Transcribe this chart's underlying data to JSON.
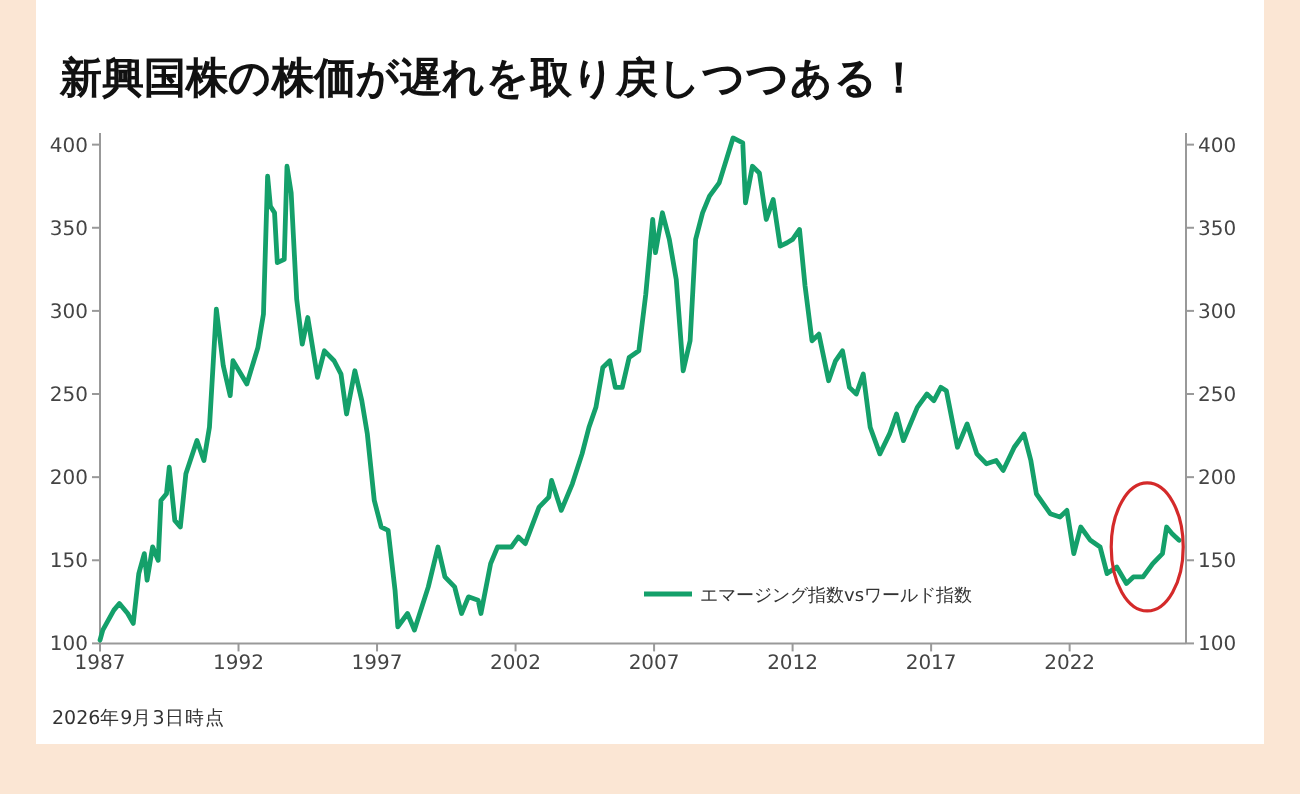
{
  "chart_data": {
    "type": "line",
    "title": "新興国株の株価が遅れを取り戻しつつある！",
    "annotations": [
      "2026年9月3日時点"
    ],
    "xlim": [
      1987,
      2026.2
    ],
    "xticks": [
      1987,
      1992,
      1997,
      2002,
      2007,
      2012,
      2017,
      2022
    ],
    "ylim": [
      100,
      407
    ],
    "yticks": [
      100,
      150,
      200,
      250,
      300,
      350,
      400
    ],
    "y2lim": [
      100,
      407
    ],
    "y2ticks": [
      100,
      150,
      200,
      250,
      300,
      350,
      400
    ],
    "legend": "bottom right",
    "grid": false,
    "line_style": "solid",
    "series": [
      {
        "name": "エマージング指数vsワールド指数",
        "color": "#14a06a",
        "x": [
          1987.0,
          1987.1,
          1987.5,
          1987.7,
          1988.0,
          1988.2,
          1988.4,
          1988.6,
          1988.7,
          1988.9,
          1989.1,
          1989.2,
          1989.4,
          1989.5,
          1989.7,
          1989.9,
          1990.1,
          1990.5,
          1990.75,
          1990.95,
          1991.2,
          1991.45,
          1991.7,
          1991.8,
          1992.3,
          1992.7,
          1992.9,
          1993.05,
          1993.15,
          1993.3,
          1993.4,
          1993.65,
          1993.75,
          1993.9,
          1994.1,
          1994.3,
          1994.5,
          1994.85,
          1995.1,
          1995.45,
          1995.7,
          1995.9,
          1996.2,
          1996.45,
          1996.65,
          1996.9,
          1997.15,
          1997.4,
          1997.65,
          1997.75,
          1998.1,
          1998.35,
          1998.85,
          1999.2,
          1999.45,
          1999.8,
          2000.05,
          2000.3,
          2000.65,
          2000.75,
          2001.1,
          2001.35,
          2001.85,
          2002.1,
          2002.35,
          2002.85,
          2003.2,
          2003.3,
          2003.65,
          2004.05,
          2004.4,
          2004.65,
          2004.9,
          2005.15,
          2005.4,
          2005.6,
          2005.85,
          2006.1,
          2006.45,
          2006.7,
          2006.95,
          2007.05,
          2007.3,
          2007.55,
          2007.8,
          2008.05,
          2008.3,
          2008.5,
          2008.75,
          2009.0,
          2009.35,
          2009.85,
          2010.2,
          2010.3,
          2010.55,
          2010.8,
          2011.05,
          2011.3,
          2011.55,
          2011.8,
          2012.0,
          2012.25,
          2012.45,
          2012.7,
          2012.95,
          2013.3,
          2013.55,
          2013.8,
          2014.05,
          2014.3,
          2014.55,
          2014.8,
          2015.15,
          2015.5,
          2015.75,
          2016.0,
          2016.5,
          2016.85,
          2017.1,
          2017.35,
          2017.55,
          2017.95,
          2018.3,
          2018.65,
          2019.0,
          2019.35,
          2019.6,
          2020.0,
          2020.35,
          2020.6,
          2020.8,
          2021.3,
          2021.65,
          2021.9,
          2022.15,
          2022.4,
          2022.75,
          2023.1,
          2023.35,
          2023.7,
          2024.05,
          2024.3,
          2024.65,
          2025.0,
          2025.35,
          2025.5,
          2025.7,
          2025.95
        ],
        "values": [
          102,
          108,
          120,
          124,
          118,
          112,
          142,
          154,
          138,
          158,
          150,
          186,
          190,
          206,
          174,
          170,
          202,
          222,
          210,
          230,
          301,
          267,
          249,
          270,
          256,
          278,
          298,
          381,
          363,
          359,
          329,
          331,
          387,
          371,
          307,
          280,
          296,
          260,
          276,
          270,
          262,
          238,
          264,
          246,
          226,
          186,
          170,
          168,
          132,
          110,
          118,
          108,
          134,
          158,
          140,
          134,
          118,
          128,
          126,
          118,
          148,
          158,
          158,
          164,
          160,
          182,
          188,
          198,
          180,
          196,
          214,
          230,
          242,
          266,
          270,
          254,
          254,
          272,
          276,
          310,
          355,
          335,
          359,
          343,
          319,
          264,
          282,
          343,
          359,
          369,
          377,
          404,
          401,
          365,
          387,
          383,
          355,
          367,
          339,
          341,
          343,
          349,
          315,
          282,
          286,
          258,
          270,
          276,
          254,
          250,
          262,
          230,
          214,
          226,
          238,
          222,
          242,
          250,
          246,
          254,
          252,
          218,
          232,
          214,
          208,
          210,
          204,
          218,
          226,
          210,
          190,
          178,
          176,
          180,
          154,
          170,
          162,
          158,
          142,
          146,
          136,
          140,
          140,
          148,
          154,
          170,
          166,
          162
        ]
      }
    ]
  }
}
